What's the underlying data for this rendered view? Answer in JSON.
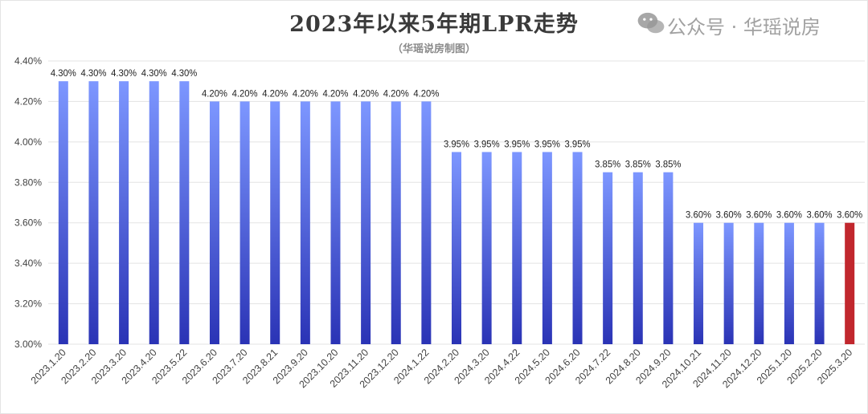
{
  "chart_data": {
    "type": "bar",
    "title": "2023年以来5年期LPR走势",
    "subtitle": "（华瑶说房制图）",
    "categories": [
      "2023.1.20",
      "2023.2.20",
      "2023.3.20",
      "2023.4.20",
      "2023.5.22",
      "2023.6.20",
      "2023.7.20",
      "2023.8.21",
      "2023.9.20",
      "2023.10.20",
      "2023.11.20",
      "2023.12.20",
      "2024.1.22",
      "2024.2.20",
      "2024.3.20",
      "2024.4.22",
      "2024.5.20",
      "2024.6.20",
      "2024.7.22",
      "2024.8.20",
      "2024.9.20",
      "2024.10.21",
      "2024.11.20",
      "2024.12.20",
      "2025.1.20",
      "2025.2.20",
      "2025.3.20"
    ],
    "values": [
      4.3,
      4.3,
      4.3,
      4.3,
      4.3,
      4.2,
      4.2,
      4.2,
      4.2,
      4.2,
      4.2,
      4.2,
      4.2,
      3.95,
      3.95,
      3.95,
      3.95,
      3.95,
      3.85,
      3.85,
      3.85,
      3.6,
      3.6,
      3.6,
      3.6,
      3.6,
      3.6
    ],
    "data_labels": [
      "4.30%",
      "4.30%",
      "4.30%",
      "4.30%",
      "4.30%",
      "4.20%",
      "4.20%",
      "4.20%",
      "4.20%",
      "4.20%",
      "4.20%",
      "4.20%",
      "4.20%",
      "3.95%",
      "3.95%",
      "3.95%",
      "3.95%",
      "3.95%",
      "3.85%",
      "3.85%",
      "3.85%",
      "3.60%",
      "3.60%",
      "3.60%",
      "3.60%",
      "3.60%",
      "3.60%"
    ],
    "ylim": [
      3.0,
      4.4
    ],
    "yticks": [
      "3.00%",
      "3.20%",
      "3.40%",
      "3.60%",
      "3.80%",
      "4.00%",
      "4.20%",
      "4.40%"
    ],
    "ytick_values": [
      3.0,
      3.2,
      3.4,
      3.6,
      3.8,
      4.0,
      4.2,
      4.4
    ],
    "xlabel": "",
    "ylabel": "",
    "grid": true,
    "colors": {
      "bar_top": "#7d97ff",
      "bar_bottom": "#2a33b5",
      "highlight": "#c1272d",
      "grid": "#e3e3e3"
    },
    "highlight_index": 26
  },
  "watermark": {
    "text": "公众号 · 华瑶说房",
    "icon": "wechat-icon"
  }
}
